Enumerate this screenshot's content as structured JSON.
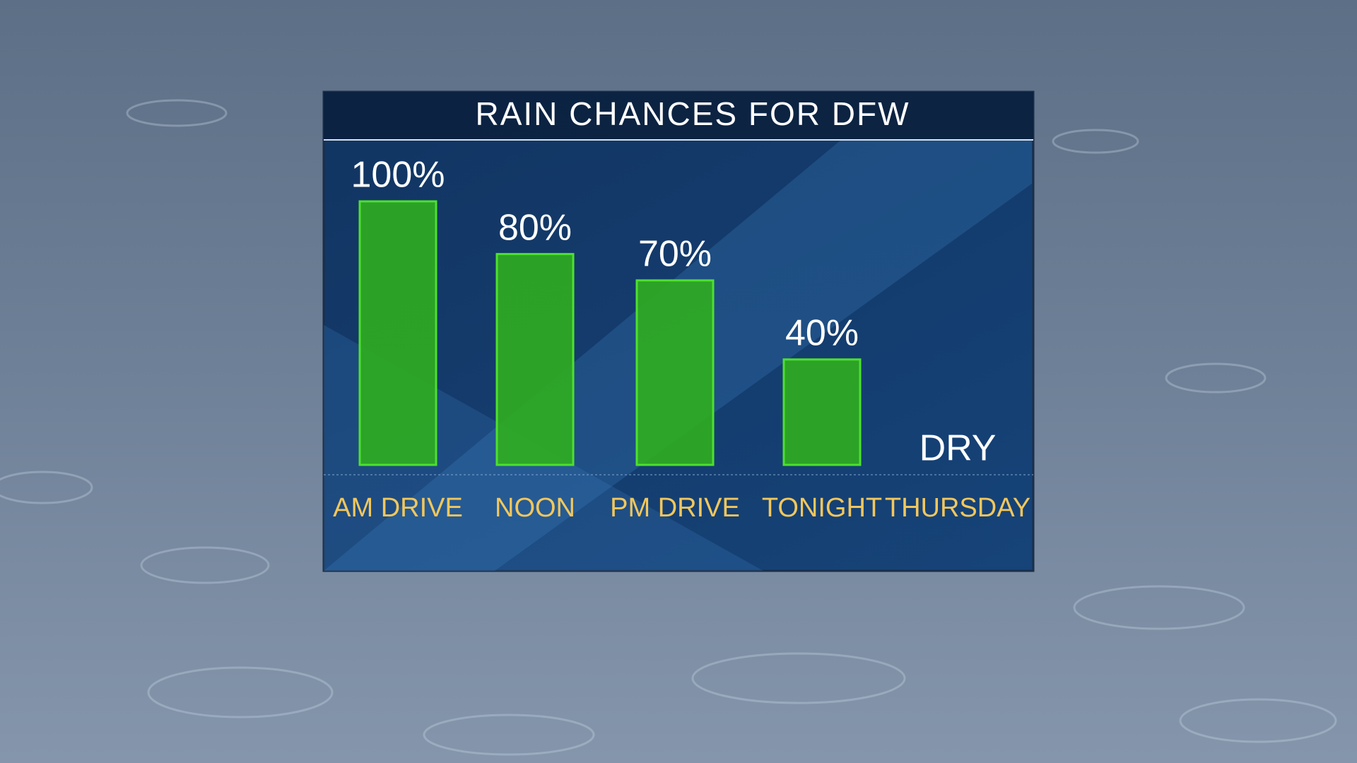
{
  "chart_data": {
    "type": "bar",
    "title": "RAIN CHANCES FOR DFW",
    "categories": [
      "AM DRIVE",
      "NOON",
      "PM DRIVE",
      "TONIGHT",
      "THURSDAY"
    ],
    "values": [
      100,
      80,
      70,
      40,
      0
    ],
    "value_labels": [
      "100%",
      "80%",
      "70%",
      "40%",
      "DRY"
    ],
    "color": "#2fae1f"
  }
}
